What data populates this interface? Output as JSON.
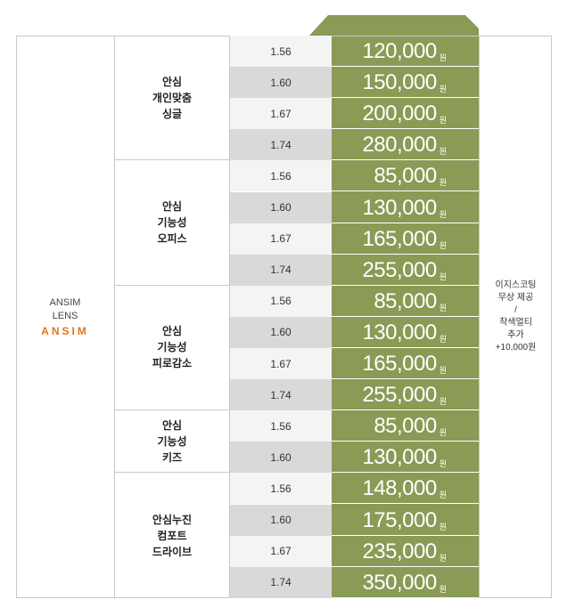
{
  "brand": {
    "line1": "ANSIM",
    "line2": "LENS",
    "logo": "ANSIM",
    "logo_color": "#e0751d"
  },
  "colors": {
    "price_bg": "#899b55",
    "row_alt": "#d9d9d9",
    "row_plain": "#f4f4f4"
  },
  "currency_unit": "원",
  "groups": [
    {
      "name": "안심\n개인맞춤\n싱글",
      "rows": [
        {
          "index": "1.56",
          "price": "120,000"
        },
        {
          "index": "1.60",
          "price": "150,000"
        },
        {
          "index": "1.67",
          "price": "200,000"
        },
        {
          "index": "1.74",
          "price": "280,000"
        }
      ]
    },
    {
      "name": "안심\n기능성\n오피스",
      "rows": [
        {
          "index": "1.56",
          "price": "85,000"
        },
        {
          "index": "1.60",
          "price": "130,000"
        },
        {
          "index": "1.67",
          "price": "165,000"
        },
        {
          "index": "1.74",
          "price": "255,000"
        }
      ]
    },
    {
      "name": "안심\n기능성\n피로감소",
      "rows": [
        {
          "index": "1.56",
          "price": "85,000"
        },
        {
          "index": "1.60",
          "price": "130,000"
        },
        {
          "index": "1.67",
          "price": "165,000"
        },
        {
          "index": "1.74",
          "price": "255,000"
        }
      ]
    },
    {
      "name": "안심\n기능성\n키즈",
      "rows": [
        {
          "index": "1.56",
          "price": "85,000"
        },
        {
          "index": "1.60",
          "price": "130,000"
        }
      ]
    },
    {
      "name": "안심누진\n컴포트\n드라이브",
      "rows": [
        {
          "index": "1.56",
          "price": "148,000"
        },
        {
          "index": "1.60",
          "price": "175,000"
        },
        {
          "index": "1.67",
          "price": "235,000"
        },
        {
          "index": "1.74",
          "price": "350,000"
        }
      ]
    }
  ],
  "note": "이지스코팅\n무상 제공\n/\n착색멀티\n추가\n+10,000원"
}
